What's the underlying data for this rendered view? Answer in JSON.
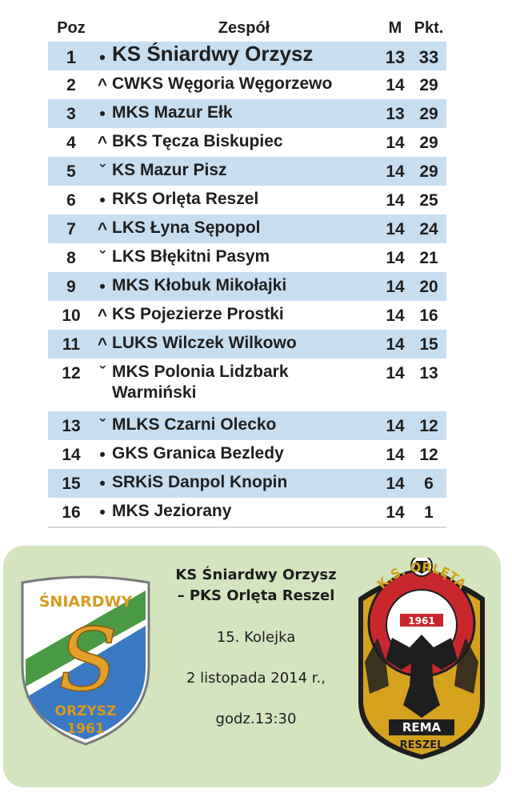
{
  "table": {
    "headers": {
      "pos": "Poz",
      "team": "Zespół",
      "m": "M",
      "pkt": "Pkt."
    },
    "rows": [
      {
        "pos": "1",
        "mark": "•",
        "team": "KS Śniardwy Orzysz",
        "m": "13",
        "pkt": "33"
      },
      {
        "pos": "2",
        "mark": "^",
        "team": "CWKS Węgoria Węgorzewo",
        "m": "14",
        "pkt": "29"
      },
      {
        "pos": "3",
        "mark": "•",
        "team": "MKS Mazur Ełk",
        "m": "13",
        "pkt": "29"
      },
      {
        "pos": "4",
        "mark": "^",
        "team": "BKS Tęcza Biskupiec",
        "m": "14",
        "pkt": "29"
      },
      {
        "pos": "5",
        "mark": "ˇ",
        "team": "KS Mazur Pisz",
        "m": "14",
        "pkt": "29"
      },
      {
        "pos": "6",
        "mark": "•",
        "team": "RKS Orlęta Reszel",
        "m": "14",
        "pkt": "25"
      },
      {
        "pos": "7",
        "mark": "^",
        "team": "LKS Łyna Sępopol",
        "m": "14",
        "pkt": "24"
      },
      {
        "pos": "8",
        "mark": "ˇ",
        "team": "LKS Błękitni Pasym",
        "m": "14",
        "pkt": "21"
      },
      {
        "pos": "9",
        "mark": "•",
        "team": "MKS Kłobuk Mikołajki",
        "m": "14",
        "pkt": "20"
      },
      {
        "pos": "10",
        "mark": "^",
        "team": "KS Pojezierze Prostki",
        "m": "14",
        "pkt": "16"
      },
      {
        "pos": "11",
        "mark": "^",
        "team": "LUKS Wilczek Wilkowo",
        "m": "14",
        "pkt": "15"
      },
      {
        "pos": "12",
        "mark": "ˇ",
        "team": "MKS Polonia Lidzbark Warmiński",
        "m": "14",
        "pkt": "13"
      },
      {
        "pos": "13",
        "mark": "ˇ",
        "team": "MLKS Czarni Olecko",
        "m": "14",
        "pkt": "12"
      },
      {
        "pos": "14",
        "mark": "•",
        "team": "GKS Granica Bezledy",
        "m": "14",
        "pkt": "12"
      },
      {
        "pos": "15",
        "mark": "•",
        "team": "SRKiS Danpol Knopin",
        "m": "14",
        "pkt": "6"
      },
      {
        "pos": "16",
        "mark": "•",
        "team": "MKS Jeziorany",
        "m": "14",
        "pkt": "1"
      }
    ]
  },
  "match": {
    "home": "KS Śniardwy Orzysz",
    "away": "– PKS Orlęta Reszel",
    "round": "15. Kolejka",
    "date": "2 listopada 2014 r.,",
    "time": "godz.13:30"
  },
  "logos": {
    "left": {
      "top_text": "ŚNIARDWY",
      "letter": "S",
      "bottom_text": "ORZYSZ",
      "year": "1961"
    },
    "right": {
      "top_text": "K.S. ORLĘTA",
      "year": "1961",
      "plate": "REMA",
      "bottom_text": "RESZEL"
    }
  },
  "colors": {
    "row_shade": "#c7def1",
    "panel_bg": "#d3e4bf",
    "left_logo_blue": "#3a78c3",
    "left_logo_green": "#4a9a45",
    "right_logo_red": "#c8282d",
    "right_logo_gold": "#d5a21e"
  }
}
